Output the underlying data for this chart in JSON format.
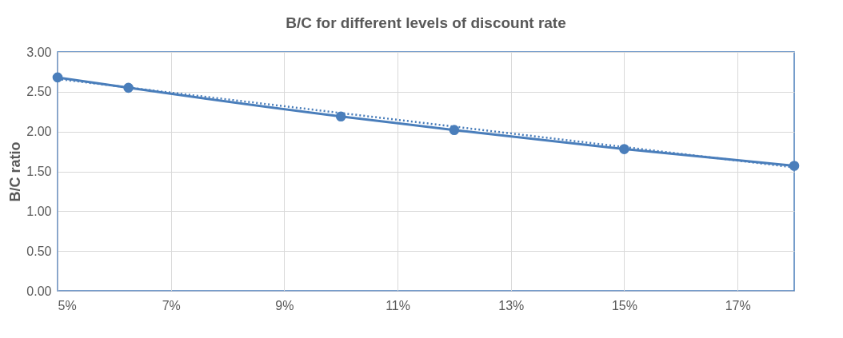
{
  "chart_data": {
    "type": "line",
    "title": "B/C for different levels of discount rate",
    "ylabel": "B/C ratio",
    "xlim": [
      5,
      18
    ],
    "xticks": [
      {
        "value": 5,
        "label": "5%"
      },
      {
        "value": 7,
        "label": "7%"
      },
      {
        "value": 9,
        "label": "9%"
      },
      {
        "value": 11,
        "label": "11%"
      },
      {
        "value": 13,
        "label": "13%"
      },
      {
        "value": 15,
        "label": "15%"
      },
      {
        "value": 17,
        "label": "17%"
      }
    ],
    "ylim": [
      0,
      3
    ],
    "yticks": [
      {
        "value": 0,
        "label": "0.00"
      },
      {
        "value": 0.5,
        "label": "0.50"
      },
      {
        "value": 1,
        "label": "1.00"
      },
      {
        "value": 1.5,
        "label": "1.50"
      },
      {
        "value": 2,
        "label": "2.00"
      },
      {
        "value": 2.5,
        "label": "2.50"
      },
      {
        "value": 3,
        "label": "3.00"
      }
    ],
    "grid": true,
    "series": [
      {
        "color": "#4a7ebb",
        "x": [
          5,
          6.25,
          10,
          12,
          15,
          18
        ],
        "values": [
          2.68,
          2.55,
          2.19,
          2.02,
          1.78,
          1.57
        ],
        "marker": "circle",
        "line_style": "solid"
      },
      {
        "color": "#4a7ebb",
        "x": [
          5,
          18
        ],
        "values": [
          2.66,
          1.55
        ],
        "marker": "none",
        "line_style": "dotted"
      }
    ]
  }
}
